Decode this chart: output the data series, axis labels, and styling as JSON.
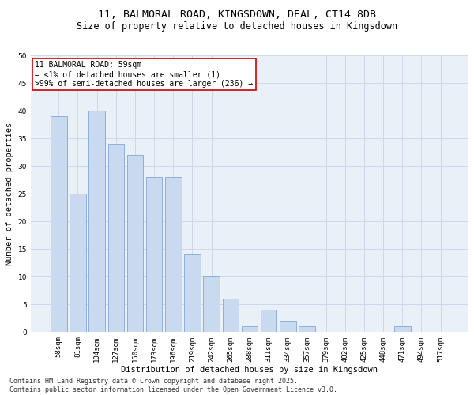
{
  "title_line1": "11, BALMORAL ROAD, KINGSDOWN, DEAL, CT14 8DB",
  "title_line2": "Size of property relative to detached houses in Kingsdown",
  "xlabel": "Distribution of detached houses by size in Kingsdown",
  "ylabel": "Number of detached properties",
  "categories": [
    "58sqm",
    "81sqm",
    "104sqm",
    "127sqm",
    "150sqm",
    "173sqm",
    "196sqm",
    "219sqm",
    "242sqm",
    "265sqm",
    "288sqm",
    "311sqm",
    "334sqm",
    "357sqm",
    "379sqm",
    "402sqm",
    "425sqm",
    "448sqm",
    "471sqm",
    "494sqm",
    "517sqm"
  ],
  "values": [
    39,
    25,
    40,
    34,
    32,
    28,
    28,
    14,
    10,
    6,
    1,
    4,
    2,
    1,
    0,
    0,
    0,
    0,
    1,
    0,
    0
  ],
  "bar_color": "#c9d9f0",
  "bar_edge_color": "#7fa8d4",
  "ylim": [
    0,
    50
  ],
  "yticks": [
    0,
    5,
    10,
    15,
    20,
    25,
    30,
    35,
    40,
    45,
    50
  ],
  "grid_color": "#d0d8e8",
  "background_color": "#eaf0f8",
  "annotation_text": "11 BALMORAL ROAD: 59sqm\n← <1% of detached houses are smaller (1)\n>99% of semi-detached houses are larger (236) →",
  "annotation_box_color": "#ffffff",
  "annotation_box_edge_color": "#cc0000",
  "footnote": "Contains HM Land Registry data © Crown copyright and database right 2025.\nContains public sector information licensed under the Open Government Licence v3.0.",
  "title_fontsize": 9.5,
  "subtitle_fontsize": 8.5,
  "axis_label_fontsize": 7.5,
  "tick_fontsize": 6.5,
  "annotation_fontsize": 7,
  "footnote_fontsize": 6
}
